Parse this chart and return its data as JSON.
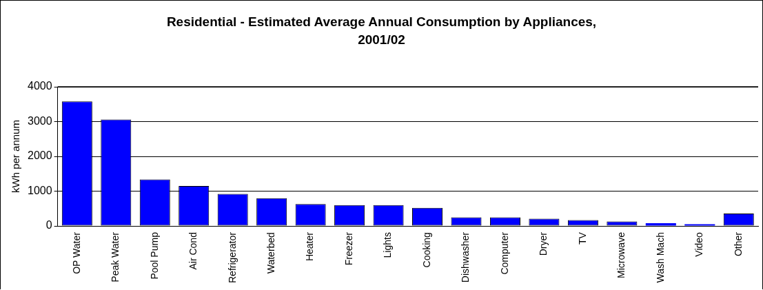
{
  "chart_data": {
    "type": "bar",
    "title": "Residential - Estimated Average Annual Consumption by Appliances, 2001/02",
    "ylabel": "kWh per annum",
    "categories": [
      "OP Water",
      "Peak Water",
      "Pool Pump",
      "Air Cond",
      "Refrigerator",
      "Waterbed",
      "Heater",
      "Freezer",
      "Lights",
      "Cooking",
      "Dishwasher",
      "Computer",
      "Dryer",
      "TV",
      "Microwave",
      "Wash Mach",
      "Video",
      "Other"
    ],
    "values": [
      3580,
      3060,
      1340,
      1150,
      920,
      800,
      630,
      600,
      600,
      520,
      250,
      250,
      210,
      170,
      130,
      80,
      50,
      360
    ],
    "color": "#0000ff",
    "ylim": [
      0,
      4000
    ],
    "yticks": [
      0,
      1000,
      2000,
      3000,
      4000
    ],
    "grid": "y",
    "legend": false
  }
}
